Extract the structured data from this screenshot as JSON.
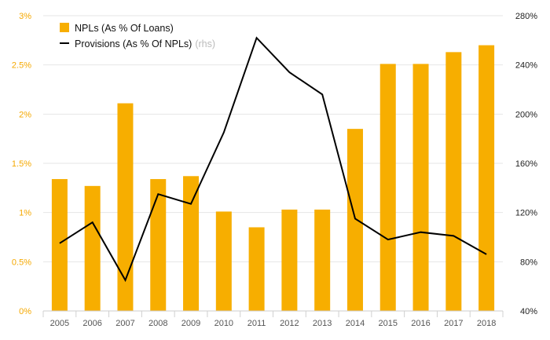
{
  "chart_data": {
    "type": "bar",
    "categories": [
      "2005",
      "2006",
      "2007",
      "2008",
      "2009",
      "2010",
      "2011",
      "2012",
      "2013",
      "2014",
      "2015",
      "2016",
      "2017",
      "2018"
    ],
    "series": [
      {
        "name": "NPLs (As % Of Loans)",
        "type": "bar",
        "axis": "left",
        "values": [
          1.34,
          1.27,
          2.11,
          1.34,
          1.37,
          1.01,
          0.85,
          1.03,
          1.03,
          1.85,
          2.51,
          2.51,
          2.63,
          2.7
        ]
      },
      {
        "name": "Provisions (As % Of NPLs)",
        "name_suffix": "(rhs)",
        "type": "line",
        "axis": "right",
        "values": [
          95,
          112,
          65,
          135,
          127,
          185,
          262,
          234,
          216,
          115,
          98,
          104,
          101,
          86
        ]
      }
    ],
    "left_axis": {
      "min": 0,
      "max": 3,
      "ticks": [
        0,
        0.5,
        1,
        1.5,
        2,
        2.5,
        3
      ],
      "tick_labels": [
        "0%",
        "0.5%",
        "1%",
        "1.5%",
        "2%",
        "2.5%",
        "3%"
      ]
    },
    "right_axis": {
      "min": 40,
      "max": 280,
      "ticks": [
        40,
        80,
        120,
        160,
        200,
        240,
        280
      ],
      "tick_labels": [
        "40%",
        "80%",
        "120%",
        "160%",
        "200%",
        "240%",
        "280%"
      ]
    },
    "grid": true,
    "legend_position": "top-left",
    "colors": {
      "bar": "#f7ae00",
      "line": "#000000",
      "left_ticks": "#f5a800",
      "right_ticks": "#222222",
      "grid": "#e6e6e6"
    }
  }
}
